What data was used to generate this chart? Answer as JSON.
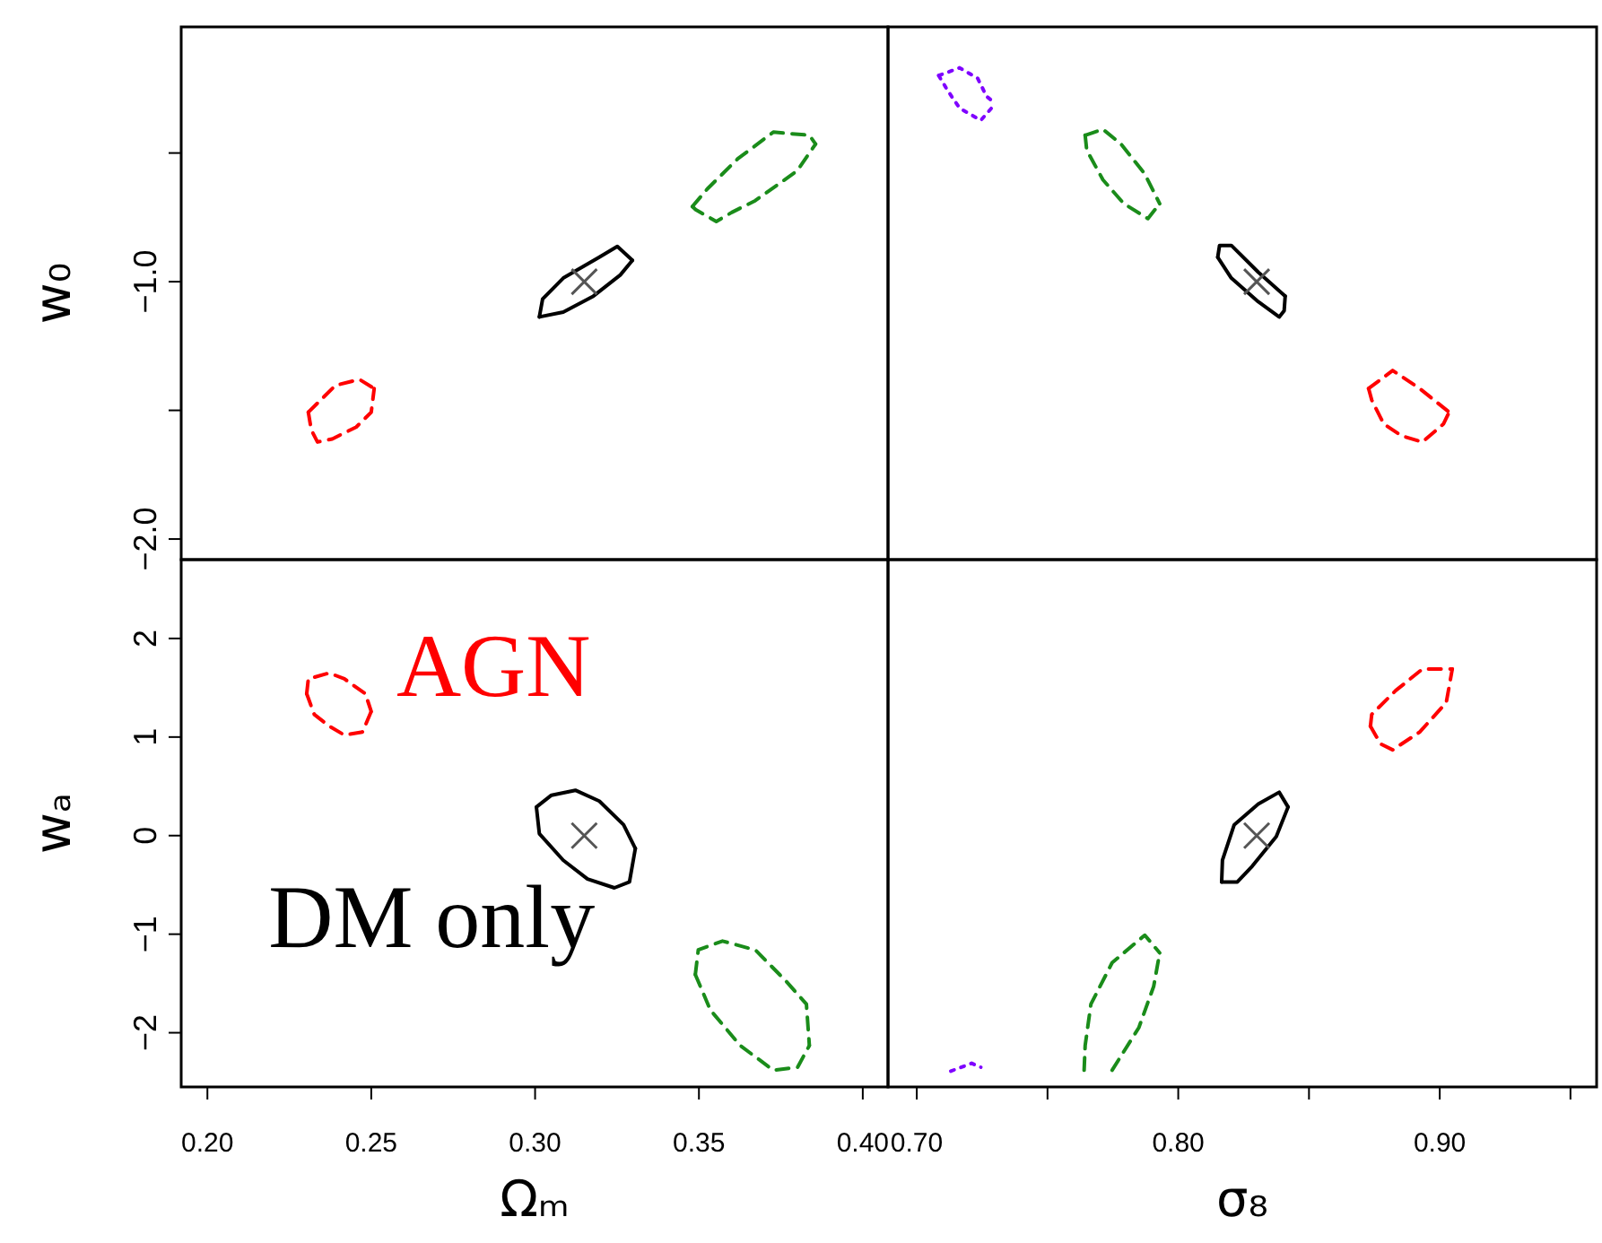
{
  "chart_data": [
    {
      "type": "line",
      "ylabel": "w₀",
      "xlim": [
        0.192,
        0.4077
      ],
      "ylim": [
        -2.08,
        -0.01
      ],
      "yticks": [
        {
          "value": -2,
          "label": "−2.0"
        },
        {
          "value": -1.5,
          "label": null
        },
        {
          "value": -1,
          "label": "−1.0"
        },
        {
          "value": -0.5,
          "label": null
        }
      ],
      "tick_labels": "y",
      "series": [
        {
          "color": "#000000",
          "line_style": "solid",
          "x": [
            0.3013,
            0.3023,
            0.3086,
            0.3196,
            0.3251,
            0.3297
          ],
          "values": [
            -1.137,
            -1.067,
            -0.986,
            -0.905,
            -0.863,
            -0.917
          ]
        },
        {
          "color": "#000000",
          "line_style": "solid",
          "x": [
            0.3013,
            0.3086,
            0.3178,
            0.326,
            0.3297
          ],
          "values": [
            -1.137,
            -1.118,
            -1.056,
            -0.974,
            -0.917
          ]
        },
        {
          "color": "#ff0000",
          "line_style": "dashed",
          "x": [
            0.2308,
            0.2391,
            0.2464,
            0.2509
          ],
          "values": [
            -1.507,
            -1.403,
            -1.38,
            -1.415
          ]
        },
        {
          "color": "#ff0000",
          "line_style": "dashed",
          "x": [
            0.2308,
            0.2317,
            0.2336,
            0.2381,
            0.2454,
            0.25,
            0.2509
          ],
          "values": [
            -1.507,
            -1.576,
            -1.623,
            -1.611,
            -1.565,
            -1.507,
            -1.415
          ]
        },
        {
          "color": "#1a8c1a",
          "line_style": "dashed",
          "x": [
            0.348,
            0.3526,
            0.3618,
            0.3727,
            0.3837,
            0.3856
          ],
          "values": [
            -0.708,
            -0.639,
            -0.523,
            -0.419,
            -0.431,
            -0.465
          ]
        },
        {
          "color": "#1a8c1a",
          "line_style": "dashed",
          "x": [
            0.348,
            0.349,
            0.3553,
            0.36,
            0.3672,
            0.38,
            0.3856
          ],
          "values": [
            -0.708,
            -0.72,
            -0.766,
            -0.731,
            -0.685,
            -0.569,
            -0.465
          ]
        },
        {
          "type": "scatter",
          "marker": "cross",
          "color": "#555555",
          "x": [
            0.315
          ],
          "values": [
            -1.0
          ]
        }
      ]
    },
    {
      "type": "line",
      "xlim": [
        0.689,
        0.96
      ],
      "ylim": [
        -2.08,
        -0.01
      ],
      "tick_labels": false,
      "series": [
        {
          "color": "#7f00ff",
          "line_style": "dotted",
          "x": [
            0.7084,
            0.7164,
            0.7233,
            0.7267,
            0.7301
          ],
          "values": [
            -0.199,
            -0.169,
            -0.21,
            -0.28,
            -0.308
          ]
        },
        {
          "color": "#7f00ff",
          "line_style": "dotted",
          "x": [
            0.7084,
            0.7118,
            0.7164,
            0.7245,
            0.7301
          ],
          "values": [
            -0.199,
            -0.257,
            -0.326,
            -0.373,
            -0.308
          ]
        },
        {
          "color": "#1a8c1a",
          "line_style": "dashed",
          "x": [
            0.7644,
            0.7712,
            0.7781,
            0.7872,
            0.7929
          ],
          "values": [
            -0.431,
            -0.408,
            -0.465,
            -0.581,
            -0.697
          ]
        },
        {
          "color": "#1a8c1a",
          "line_style": "dashed",
          "x": [
            0.7644,
            0.765,
            0.7712,
            0.7792,
            0.7884,
            0.7929
          ],
          "values": [
            -0.431,
            -0.489,
            -0.604,
            -0.697,
            -0.755,
            -0.697
          ]
        },
        {
          "color": "#000000",
          "line_style": "solid",
          "x": [
            0.8151,
            0.8158,
            0.8203,
            0.8306,
            0.8409
          ],
          "values": [
            -0.905,
            -0.859,
            -0.859,
            -0.963,
            -1.056
          ]
        },
        {
          "color": "#000000",
          "line_style": "solid",
          "x": [
            0.8151,
            0.8203,
            0.8306,
            0.8386,
            0.8405,
            0.8409
          ],
          "values": [
            -0.905,
            -0.986,
            -1.078,
            -1.137,
            -1.113,
            -1.056
          ]
        },
        {
          "color": "#ff0000",
          "line_style": "dashed",
          "x": [
            0.8728,
            0.882,
            0.8923,
            0.9036
          ],
          "values": [
            -1.415,
            -1.345,
            -1.415,
            -1.507
          ]
        },
        {
          "color": "#ff0000",
          "line_style": "dashed",
          "x": [
            0.8728,
            0.874,
            0.8786,
            0.8854,
            0.8934,
            0.9014,
            0.9036
          ],
          "values": [
            -1.415,
            -1.46,
            -1.553,
            -1.599,
            -1.623,
            -1.553,
            -1.507
          ]
        },
        {
          "type": "scatter",
          "marker": "cross",
          "color": "#555555",
          "x": [
            0.83
          ],
          "values": [
            -1.0
          ]
        }
      ]
    },
    {
      "type": "line",
      "xlabel": "Ωₘ",
      "ylabel": "wₐ",
      "xlim": [
        0.192,
        0.4077
      ],
      "ylim": [
        -2.55,
        2.8
      ],
      "xticks": [
        {
          "value": 0.2,
          "label": "0.20"
        },
        {
          "value": 0.25,
          "label": "0.25"
        },
        {
          "value": 0.3,
          "label": "0.30"
        },
        {
          "value": 0.35,
          "label": "0.35"
        },
        {
          "value": 0.4,
          "label": "0.40"
        }
      ],
      "yticks": [
        {
          "value": -2,
          "label": "−2"
        },
        {
          "value": -1,
          "label": "−1"
        },
        0,
        1,
        2
      ],
      "series": [
        {
          "name": "AGN",
          "color": "#ff0000",
          "line_style": "dashed",
          "x": [
            0.2303,
            0.2308,
            0.2372,
            0.2418,
            0.2482,
            0.25
          ],
          "values": [
            1.44,
            1.59,
            1.65,
            1.59,
            1.44,
            1.26
          ]
        },
        {
          "color": "#ff0000",
          "line_style": "dashed",
          "x": [
            0.2303,
            0.2326,
            0.2372,
            0.2418,
            0.2473,
            0.25
          ],
          "values": [
            1.44,
            1.23,
            1.11,
            1.02,
            1.05,
            1.26
          ]
        },
        {
          "name": "DM only",
          "color": "#000000",
          "line_style": "solid",
          "x": [
            0.3004,
            0.305,
            0.3123,
            0.3196,
            0.327,
            0.3306
          ],
          "values": [
            0.29,
            0.41,
            0.46,
            0.35,
            0.11,
            -0.13
          ]
        },
        {
          "color": "#000000",
          "line_style": "solid",
          "x": [
            0.3004,
            0.3013,
            0.3086,
            0.316,
            0.3242,
            0.3288,
            0.3306
          ],
          "values": [
            0.29,
            0.02,
            -0.25,
            -0.44,
            -0.53,
            -0.47,
            -0.13
          ]
        },
        {
          "color": "#1a8c1a",
          "line_style": "dashed",
          "x": [
            0.3489,
            0.3498,
            0.3572,
            0.3672,
            0.3764,
            0.3828,
            0.3837
          ],
          "values": [
            -1.41,
            -1.16,
            -1.07,
            -1.16,
            -1.47,
            -1.71,
            -2.13
          ]
        },
        {
          "color": "#1a8c1a",
          "line_style": "dashed",
          "x": [
            0.3489,
            0.3535,
            0.3626,
            0.3727,
            0.3801,
            0.3837
          ],
          "values": [
            -1.41,
            -1.77,
            -2.13,
            -2.38,
            -2.35,
            -2.13
          ]
        },
        {
          "type": "scatter",
          "marker": "cross",
          "color": "#555555",
          "x": [
            0.315
          ],
          "values": [
            0
          ]
        }
      ]
    },
    {
      "type": "line",
      "xlabel": "σ₈",
      "xlim": [
        0.689,
        0.96
      ],
      "ylim": [
        -2.55,
        2.8
      ],
      "xticks": [
        {
          "value": 0.7,
          "label": "0.70"
        },
        {
          "value": 0.75,
          "label": null
        },
        {
          "value": 0.8,
          "label": "0.80"
        },
        {
          "value": 0.85,
          "label": null
        },
        {
          "value": 0.9,
          "label": "0.90"
        },
        {
          "value": 0.95,
          "label": null
        }
      ],
      "tick_labels": "x",
      "series": [
        {
          "color": "#ff0000",
          "line_style": "dashed",
          "x": [
            0.8735,
            0.874,
            0.8831,
            0.8934,
            0.9048
          ],
          "values": [
            1.11,
            1.23,
            1.47,
            1.69,
            1.69
          ]
        },
        {
          "color": "#ff0000",
          "line_style": "dashed",
          "x": [
            0.8735,
            0.8774,
            0.882,
            0.8923,
            0.9025,
            0.9048
          ],
          "values": [
            1.11,
            0.93,
            0.87,
            1.05,
            1.35,
            1.69
          ]
        },
        {
          "color": "#000000",
          "line_style": "solid",
          "x": [
            0.8166,
            0.8169,
            0.8214,
            0.8306,
            0.8386,
            0.842
          ],
          "values": [
            -0.47,
            -0.25,
            0.11,
            0.32,
            0.44,
            0.29
          ]
        },
        {
          "color": "#000000",
          "line_style": "solid",
          "x": [
            0.8166,
            0.8226,
            0.8283,
            0.8375,
            0.842
          ],
          "values": [
            -0.47,
            -0.47,
            -0.31,
            -0.01,
            0.29
          ]
        },
        {
          "color": "#1a8c1a",
          "line_style": "dashed",
          "x": [
            0.764,
            0.7644,
            0.7666,
            0.7747,
            0.7872,
            0.7929
          ],
          "values": [
            -2.38,
            -2.13,
            -1.71,
            -1.29,
            -1.01,
            -1.19
          ]
        },
        {
          "color": "#1a8c1a",
          "line_style": "dashed",
          "x": [
            0.7747,
            0.7849,
            0.7906,
            0.7929
          ],
          "values": [
            -2.38,
            -1.95,
            -1.53,
            -1.19
          ]
        },
        {
          "color": "#7f00ff",
          "line_style": "dotted",
          "x": [
            0.713,
            0.721,
            0.7245
          ],
          "values": [
            -2.39,
            -2.31,
            -2.35
          ]
        },
        {
          "type": "scatter",
          "marker": "cross",
          "color": "#555555",
          "x": [
            0.83
          ],
          "values": [
            0
          ]
        }
      ]
    }
  ]
}
